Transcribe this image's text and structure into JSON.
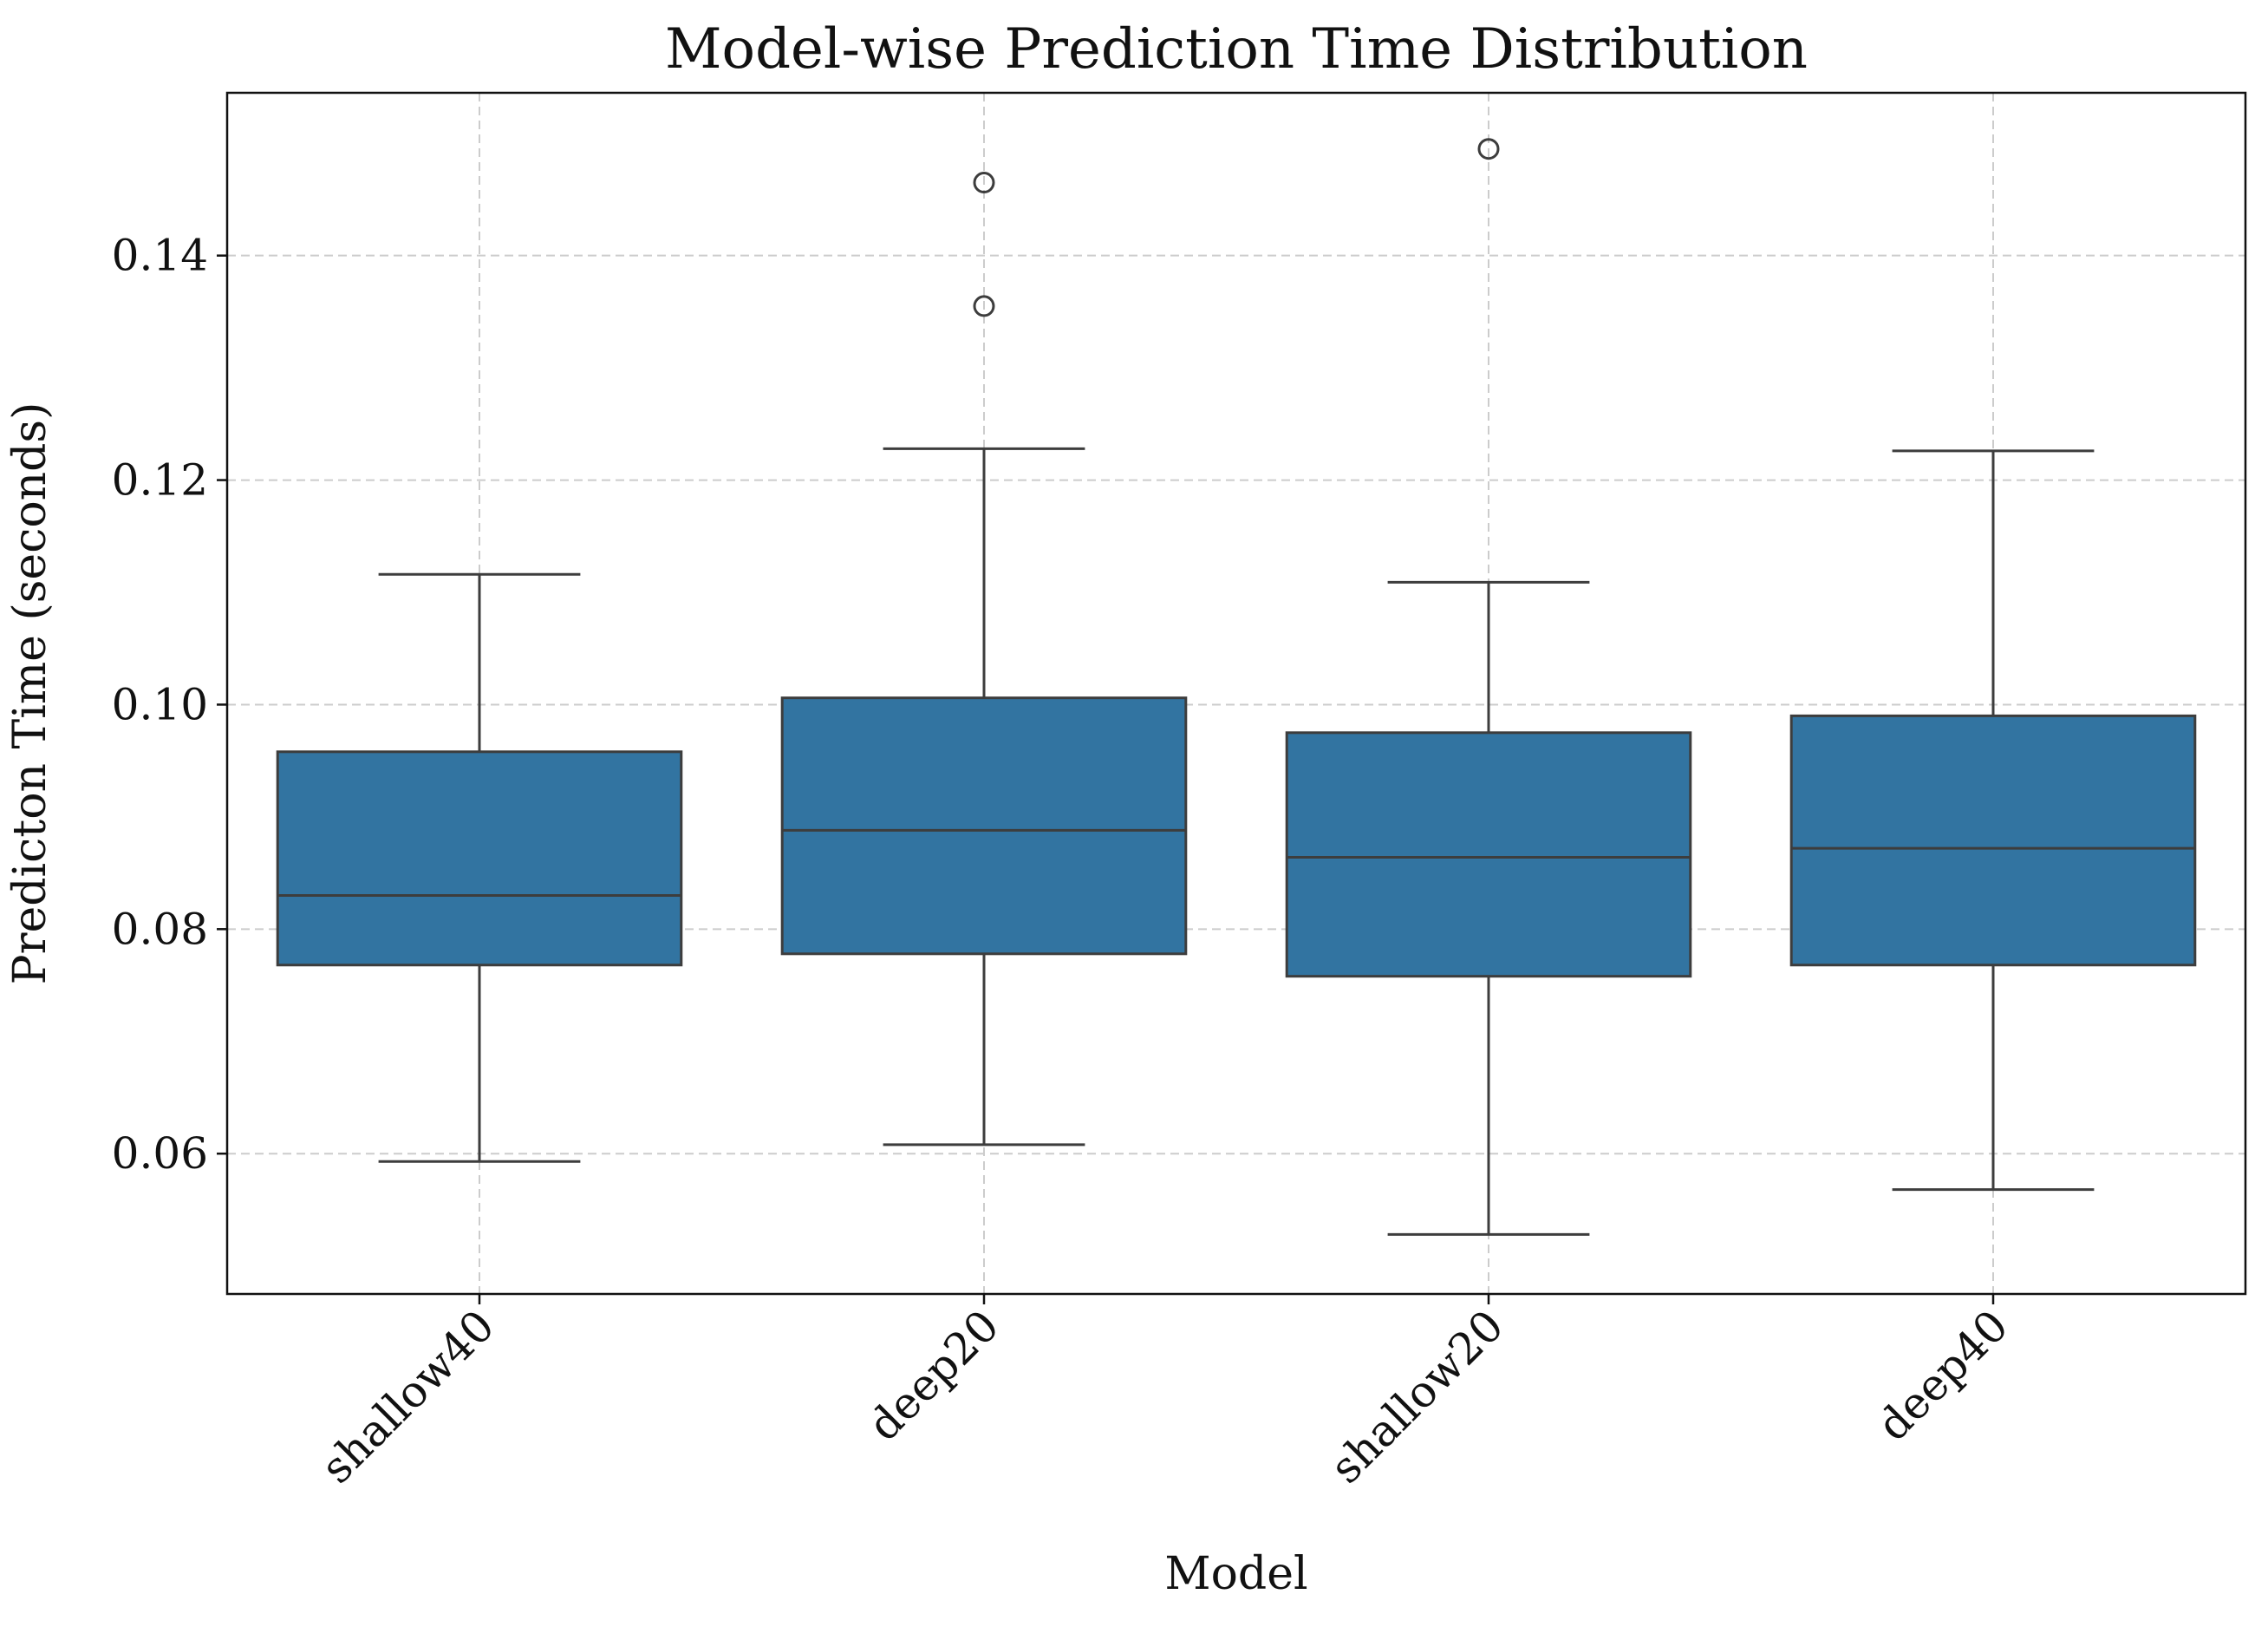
{
  "chart_data": {
    "type": "box",
    "title": "Model-wise Prediction Time Distribution",
    "xlabel": "Model",
    "ylabel": "Predicton Time (seconds)",
    "categories": [
      "shallow40",
      "deep20",
      "shallow20",
      "deep40"
    ],
    "ylim": [
      0.0475,
      0.1545
    ],
    "yticks": [
      0.06,
      0.08,
      0.1,
      0.12,
      0.14
    ],
    "ytick_labels": [
      "0.06",
      "0.08",
      "0.10",
      "0.12",
      "0.14"
    ],
    "grid": true,
    "box_color": "#3274a1",
    "edge_color": "#3d3d3d",
    "boxes": [
      {
        "category": "shallow40",
        "whisker_low": 0.0593,
        "q1": 0.0768,
        "median": 0.083,
        "q3": 0.0958,
        "whisker_high": 0.1116,
        "outliers": []
      },
      {
        "category": "deep20",
        "whisker_low": 0.0608,
        "q1": 0.0778,
        "median": 0.0888,
        "q3": 0.1006,
        "whisker_high": 0.1228,
        "outliers": [
          0.1355,
          0.1465
        ]
      },
      {
        "category": "shallow20",
        "whisker_low": 0.0528,
        "q1": 0.0758,
        "median": 0.0864,
        "q3": 0.0975,
        "whisker_high": 0.1109,
        "outliers": [
          0.1495
        ]
      },
      {
        "category": "deep40",
        "whisker_low": 0.0568,
        "q1": 0.0768,
        "median": 0.0872,
        "q3": 0.099,
        "whisker_high": 0.1226,
        "outliers": []
      }
    ]
  }
}
